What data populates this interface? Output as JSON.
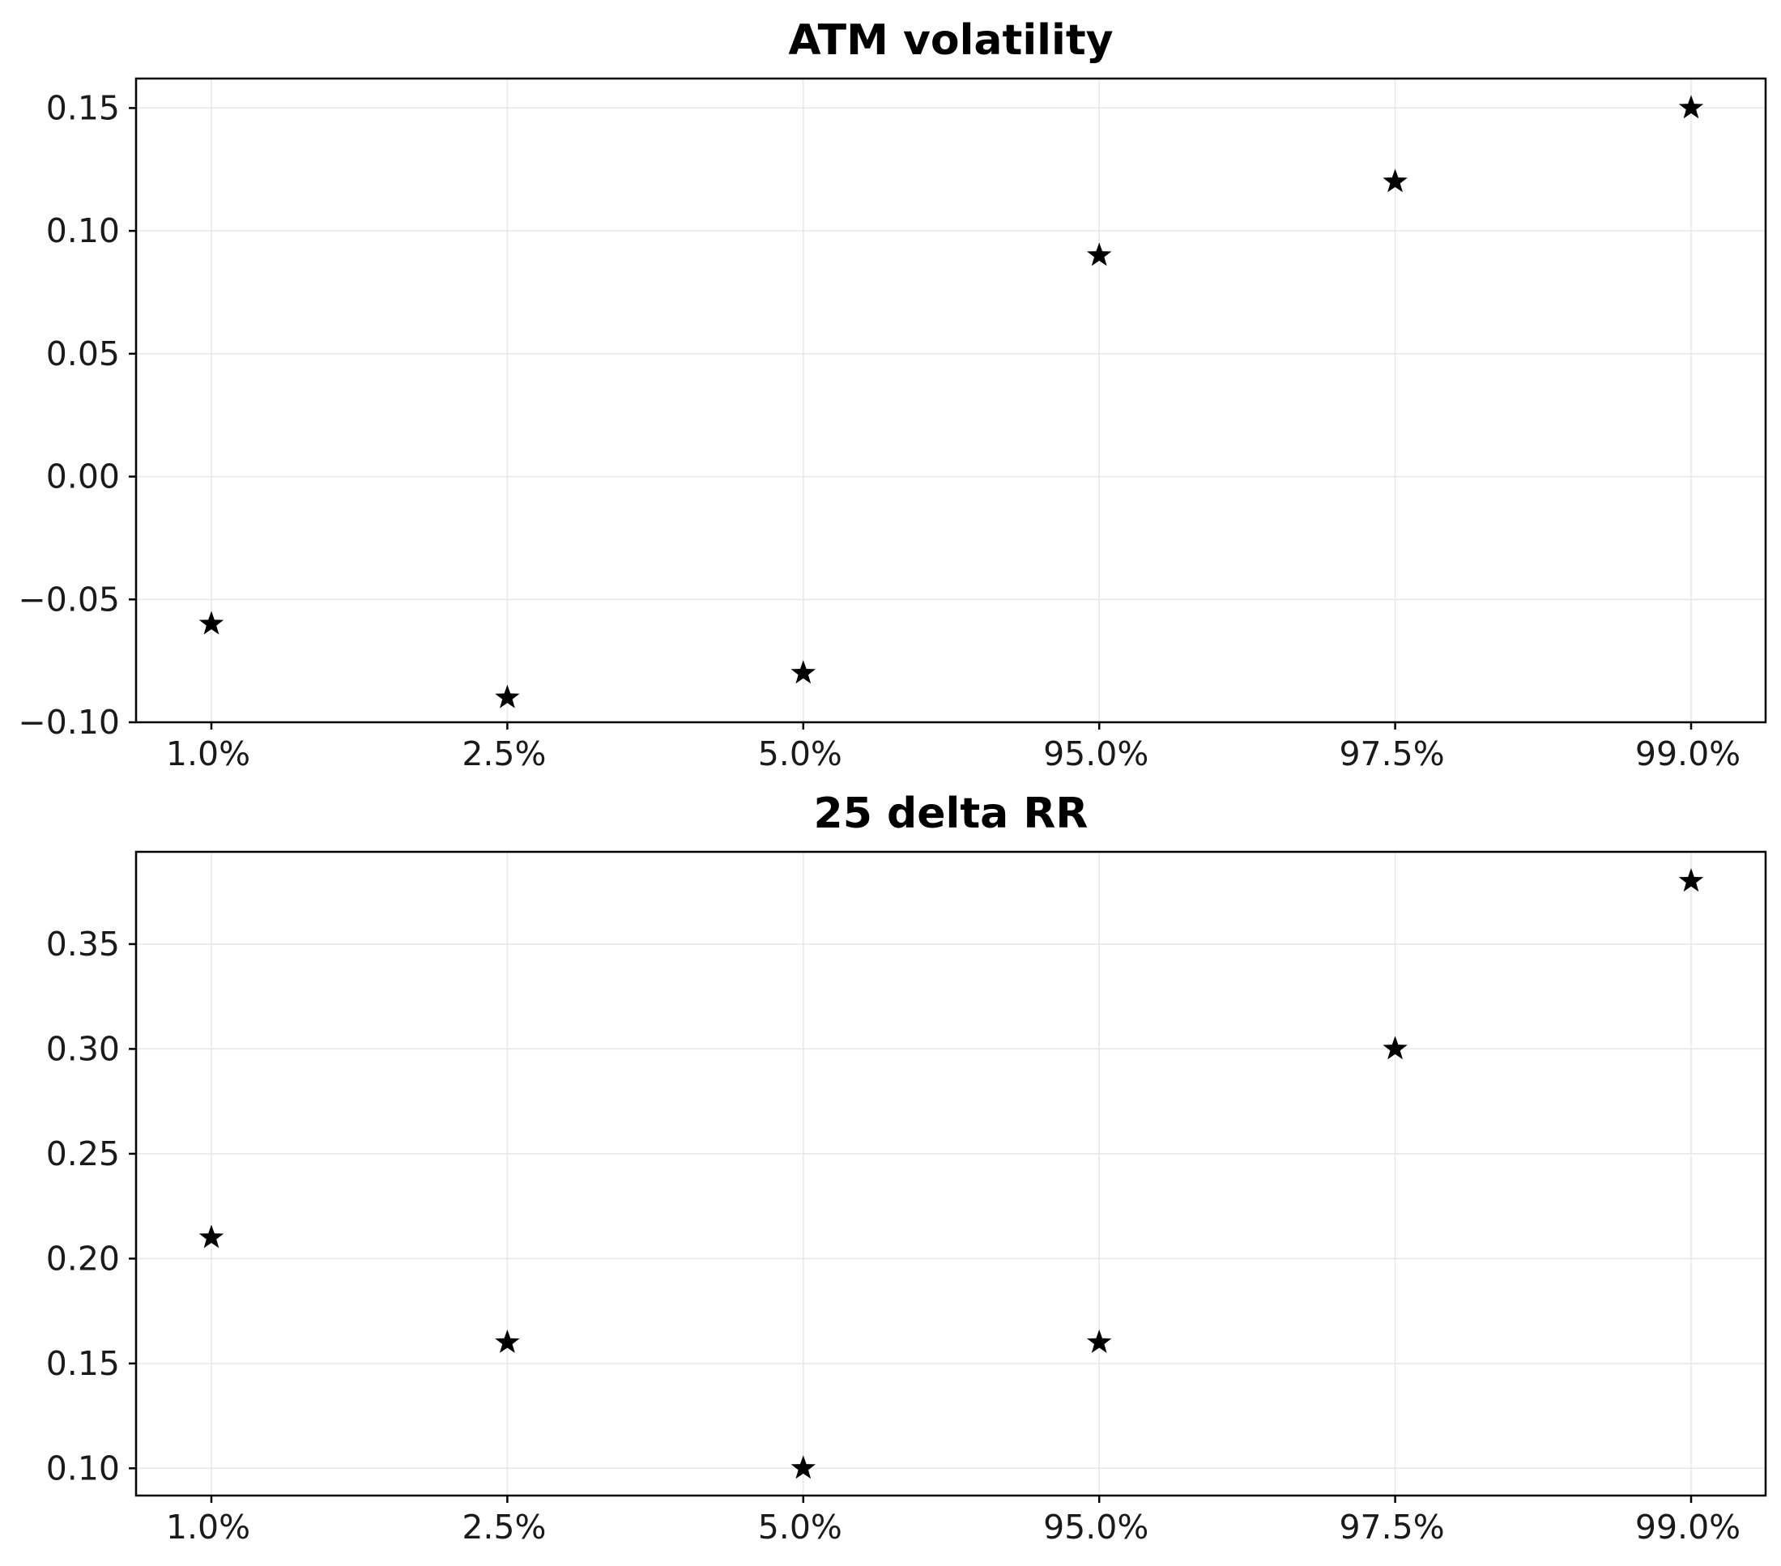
{
  "chart_data": [
    {
      "type": "scatter",
      "title": "ATM volatility",
      "xlabel": "",
      "ylabel": "",
      "categories": [
        "1.0%",
        "2.5%",
        "5.0%",
        "95.0%",
        "97.5%",
        "99.0%"
      ],
      "values": [
        -0.06,
        -0.09,
        -0.08,
        0.09,
        0.12,
        0.15
      ],
      "ylim": [
        -0.1,
        0.162
      ],
      "yticks": [
        -0.1,
        -0.05,
        0.0,
        0.05,
        0.1,
        0.15
      ],
      "ytick_labels": [
        "−0.10",
        "−0.05",
        "0.00",
        "0.05",
        "0.10",
        "0.15"
      ],
      "marker": "star",
      "grid": true
    },
    {
      "type": "scatter",
      "title": "25 delta RR",
      "xlabel": "",
      "ylabel": "",
      "categories": [
        "1.0%",
        "2.5%",
        "5.0%",
        "95.0%",
        "97.5%",
        "99.0%"
      ],
      "values": [
        0.21,
        0.16,
        0.1,
        0.16,
        0.3,
        0.38
      ],
      "ylim": [
        0.087,
        0.394
      ],
      "yticks": [
        0.1,
        0.15,
        0.2,
        0.25,
        0.3,
        0.35
      ],
      "ytick_labels": [
        "0.10",
        "0.15",
        "0.20",
        "0.25",
        "0.30",
        "0.35"
      ],
      "marker": "star",
      "grid": true
    }
  ],
  "colors": {
    "marker": "#000000",
    "grid": "#e6e6e6",
    "frame": "#000000"
  }
}
